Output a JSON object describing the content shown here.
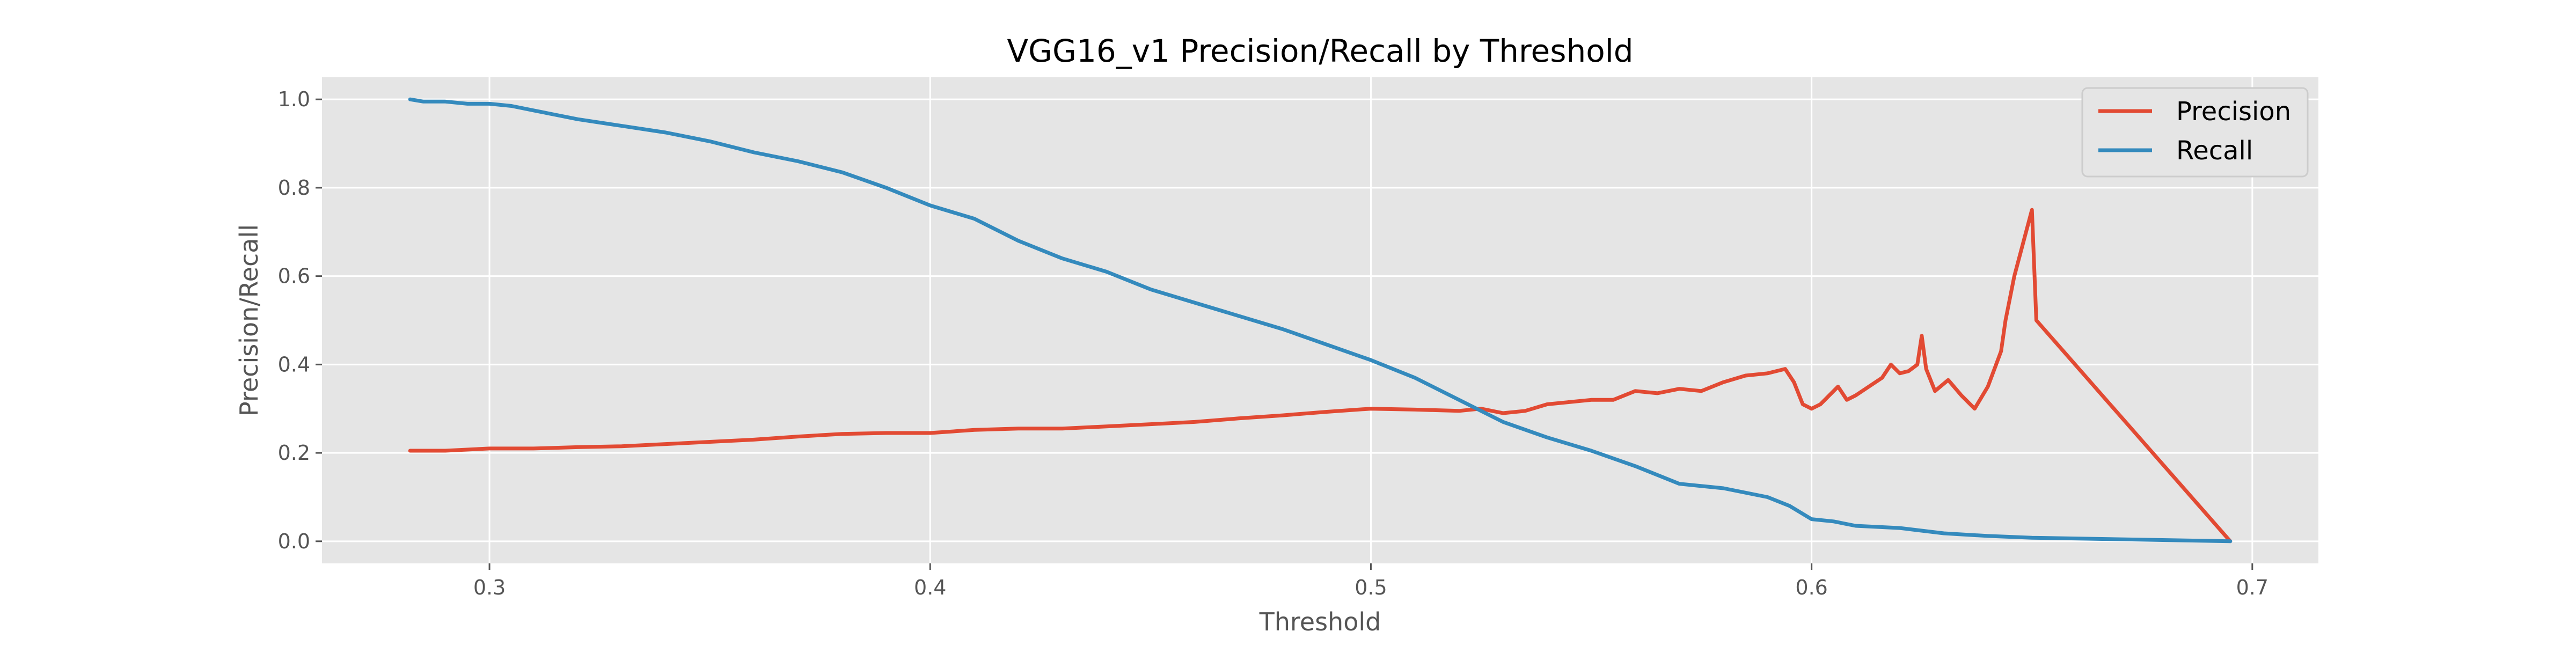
{
  "chart_data": {
    "type": "line",
    "title": "VGG16_v1 Precision/Recall by Threshold",
    "xlabel": "Threshold",
    "ylabel": "Precision/Recall",
    "xlim": [
      0.262,
      0.715
    ],
    "ylim": [
      -0.05,
      1.05
    ],
    "xticks": [
      0.3,
      0.4,
      0.5,
      0.6,
      0.7
    ],
    "yticks": [
      0.0,
      0.2,
      0.4,
      0.6,
      0.8,
      1.0
    ],
    "xtick_labels": [
      "0.3",
      "0.4",
      "0.5",
      "0.6",
      "0.7"
    ],
    "ytick_labels": [
      "0.0",
      "0.2",
      "0.4",
      "0.6",
      "0.8",
      "1.0"
    ],
    "grid": true,
    "legend_position": "top-right",
    "series": [
      {
        "name": "Precision",
        "color": "#E24A33",
        "x": [
          0.282,
          0.29,
          0.3,
          0.31,
          0.32,
          0.33,
          0.34,
          0.35,
          0.36,
          0.37,
          0.38,
          0.39,
          0.4,
          0.41,
          0.42,
          0.43,
          0.44,
          0.45,
          0.46,
          0.47,
          0.48,
          0.49,
          0.5,
          0.51,
          0.52,
          0.525,
          0.53,
          0.535,
          0.54,
          0.545,
          0.55,
          0.555,
          0.56,
          0.565,
          0.57,
          0.575,
          0.58,
          0.585,
          0.59,
          0.594,
          0.596,
          0.598,
          0.6,
          0.602,
          0.604,
          0.606,
          0.608,
          0.61,
          0.613,
          0.616,
          0.618,
          0.62,
          0.622,
          0.624,
          0.625,
          0.626,
          0.628,
          0.631,
          0.634,
          0.637,
          0.64,
          0.643,
          0.644,
          0.646,
          0.65,
          0.651,
          0.695
        ],
        "y": [
          0.205,
          0.205,
          0.21,
          0.21,
          0.213,
          0.215,
          0.22,
          0.225,
          0.23,
          0.237,
          0.243,
          0.245,
          0.245,
          0.252,
          0.255,
          0.255,
          0.26,
          0.265,
          0.27,
          0.278,
          0.285,
          0.293,
          0.3,
          0.298,
          0.295,
          0.3,
          0.29,
          0.295,
          0.31,
          0.315,
          0.32,
          0.32,
          0.34,
          0.335,
          0.345,
          0.34,
          0.36,
          0.375,
          0.38,
          0.39,
          0.36,
          0.31,
          0.3,
          0.31,
          0.33,
          0.35,
          0.32,
          0.33,
          0.35,
          0.37,
          0.4,
          0.38,
          0.385,
          0.4,
          0.465,
          0.39,
          0.34,
          0.365,
          0.33,
          0.3,
          0.35,
          0.43,
          0.5,
          0.6,
          0.75,
          0.5,
          0.0
        ]
      },
      {
        "name": "Recall",
        "color": "#348ABD",
        "x": [
          0.282,
          0.285,
          0.29,
          0.295,
          0.3,
          0.305,
          0.31,
          0.315,
          0.32,
          0.33,
          0.34,
          0.35,
          0.36,
          0.37,
          0.38,
          0.39,
          0.4,
          0.41,
          0.42,
          0.43,
          0.44,
          0.45,
          0.46,
          0.47,
          0.48,
          0.49,
          0.5,
          0.51,
          0.52,
          0.53,
          0.54,
          0.55,
          0.56,
          0.57,
          0.58,
          0.59,
          0.595,
          0.6,
          0.605,
          0.61,
          0.62,
          0.63,
          0.64,
          0.65,
          0.695
        ],
        "y": [
          1.0,
          0.995,
          0.995,
          0.99,
          0.99,
          0.985,
          0.975,
          0.965,
          0.955,
          0.94,
          0.925,
          0.905,
          0.88,
          0.86,
          0.835,
          0.8,
          0.76,
          0.73,
          0.68,
          0.64,
          0.61,
          0.57,
          0.54,
          0.51,
          0.48,
          0.445,
          0.41,
          0.37,
          0.32,
          0.27,
          0.235,
          0.205,
          0.17,
          0.13,
          0.12,
          0.1,
          0.08,
          0.05,
          0.045,
          0.035,
          0.03,
          0.018,
          0.012,
          0.008,
          0.0
        ]
      }
    ]
  }
}
